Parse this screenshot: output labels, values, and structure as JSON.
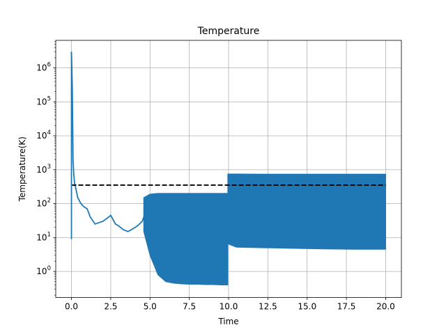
{
  "chart_data": {
    "type": "line",
    "title": "Temperature",
    "xlabel": "Time",
    "ylabel": "Temperature(K)",
    "xlim": [
      -1,
      21
    ],
    "ylim": [
      0.17,
      6500000
    ],
    "yscale": "log",
    "grid": true,
    "x_ticks": [
      0.0,
      2.5,
      5.0,
      7.5,
      10.0,
      12.5,
      15.0,
      17.5,
      20.0
    ],
    "x_tick_labels": [
      "0.0",
      "2.5",
      "5.0",
      "7.5",
      "10.0",
      "12.5",
      "15.0",
      "17.5",
      "20.0"
    ],
    "y_ticks": [
      1,
      10,
      100,
      1000,
      10000,
      100000,
      1000000
    ],
    "y_tick_labels": [
      {
        "base": "10",
        "exp": "0"
      },
      {
        "base": "10",
        "exp": "1"
      },
      {
        "base": "10",
        "exp": "2"
      },
      {
        "base": "10",
        "exp": "3"
      },
      {
        "base": "10",
        "exp": "4"
      },
      {
        "base": "10",
        "exp": "5"
      },
      {
        "base": "10",
        "exp": "6"
      }
    ],
    "series": [
      {
        "color": "#1f77b4",
        "style": "solid",
        "x": [
          0.0,
          0.05,
          0.1,
          0.15,
          0.2,
          0.3,
          0.4,
          0.6,
          0.8,
          1.0,
          1.2,
          1.5,
          1.8,
          2.0,
          2.2,
          2.5,
          2.8,
          3.0,
          3.3,
          3.6,
          3.9,
          4.2,
          4.5,
          4.8
        ],
        "y": [
          3000000,
          300000,
          2000,
          700,
          400,
          250,
          150,
          100,
          80,
          70,
          40,
          25,
          28,
          30,
          35,
          45,
          25,
          22,
          17,
          15,
          18,
          22,
          30,
          70
        ]
      },
      {
        "color": "#1f77b4",
        "style": "band",
        "x": [
          4.6,
          5.0,
          5.5,
          6.0,
          6.5,
          7.0,
          7.5,
          8.0,
          8.5,
          9.0,
          9.5,
          9.95
        ],
        "y_upper": [
          150,
          190,
          200,
          200,
          200,
          200,
          200,
          200,
          200,
          200,
          200,
          200
        ],
        "y_lower": [
          15,
          3,
          0.8,
          0.5,
          0.45,
          0.43,
          0.42,
          0.42,
          0.41,
          0.41,
          0.4,
          0.4
        ]
      },
      {
        "color": "#1f77b4",
        "style": "band",
        "x": [
          9.95,
          10.5,
          12.0,
          14.0,
          16.0,
          18.0,
          20.0
        ],
        "y_upper": [
          750,
          750,
          740,
          740,
          740,
          740,
          740
        ],
        "y_lower": [
          6.5,
          5.2,
          5.0,
          4.8,
          4.6,
          4.5,
          4.5
        ]
      },
      {
        "color": "#000000",
        "style": "dashed",
        "x": [
          0.0,
          20.0
        ],
        "y": [
          350,
          350
        ]
      }
    ]
  }
}
